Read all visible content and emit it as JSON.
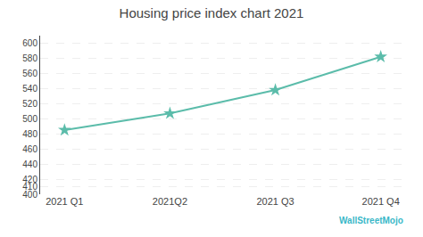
{
  "chart_data": {
    "type": "line",
    "title": "Housing price index chart 2021",
    "categories": [
      "2021 Q1",
      "2021Q2",
      "2021 Q3",
      "2021 Q4"
    ],
    "series": [
      {
        "values": [
          485,
          507,
          538,
          582
        ],
        "color": "#5bbcaa",
        "marker": "star"
      }
    ],
    "ylim": [
      400,
      610
    ],
    "yticks": [
      400,
      410,
      420,
      440,
      460,
      480,
      500,
      520,
      540,
      560,
      580,
      600
    ],
    "grid": true,
    "annotations": [
      {
        "text": "WallStreetMojo",
        "color": "#3ab8c8"
      }
    ]
  }
}
